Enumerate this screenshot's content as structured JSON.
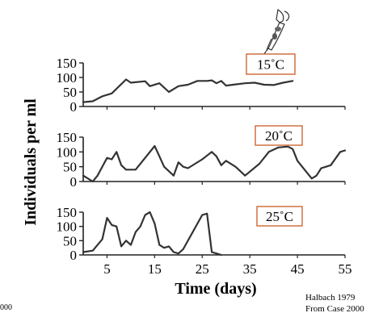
{
  "chart_data": [
    {
      "type": "line",
      "label": "15˚C",
      "ylim": [
        0,
        150
      ],
      "yticks": [
        0,
        50,
        100,
        150
      ],
      "x": [
        0,
        2,
        4,
        6,
        9,
        10,
        13,
        14,
        16,
        18,
        20,
        22,
        24,
        26,
        27,
        28,
        29,
        30,
        32,
        34,
        36,
        38,
        40,
        42,
        44
      ],
      "values": [
        15,
        18,
        35,
        45,
        93,
        82,
        87,
        70,
        80,
        50,
        70,
        75,
        88,
        88,
        90,
        80,
        88,
        72,
        76,
        80,
        82,
        75,
        74,
        82,
        88
      ]
    },
    {
      "type": "line",
      "label": "20˚C",
      "ylim": [
        0,
        150
      ],
      "yticks": [
        0,
        50,
        100,
        150
      ],
      "x": [
        0,
        1,
        2,
        3,
        5,
        6,
        7,
        8,
        9,
        11,
        13,
        15,
        16,
        17,
        19,
        20,
        21,
        22,
        25,
        27,
        28,
        29,
        30,
        32,
        34,
        37,
        39,
        41,
        43,
        44,
        45,
        46,
        48,
        49,
        50,
        51,
        52,
        54,
        55
      ],
      "values": [
        20,
        10,
        0,
        20,
        80,
        75,
        100,
        55,
        40,
        40,
        80,
        120,
        85,
        50,
        20,
        65,
        50,
        45,
        75,
        100,
        85,
        55,
        70,
        50,
        20,
        60,
        100,
        115,
        118,
        110,
        70,
        50,
        10,
        20,
        45,
        50,
        55,
        100,
        105
      ]
    },
    {
      "type": "line",
      "label": "25˚C",
      "ylim": [
        0,
        150
      ],
      "yticks": [
        0,
        50,
        100,
        150
      ],
      "x": [
        0,
        2,
        4,
        5,
        6,
        7,
        8,
        9,
        10,
        11,
        12,
        13,
        14,
        15,
        16,
        17,
        18,
        19,
        20,
        21,
        23,
        25,
        26,
        27,
        28,
        29
      ],
      "values": [
        10,
        15,
        55,
        130,
        105,
        100,
        30,
        50,
        35,
        80,
        100,
        140,
        150,
        110,
        35,
        25,
        30,
        10,
        5,
        20,
        80,
        140,
        145,
        10,
        5,
        0
      ]
    }
  ],
  "shared": {
    "xlabel": "Time (days)",
    "ylabel": "Individuals per ml",
    "xlim": [
      0,
      55
    ],
    "xticks": [
      5,
      15,
      25,
      35,
      45,
      55
    ],
    "line_color": "#333333",
    "label_box_border": "#cc6633",
    "source_line1": "Halbach 1979",
    "source_line2": "From Case 2000",
    "left_fragment": "000",
    "illustration": "rotifer-icon"
  }
}
